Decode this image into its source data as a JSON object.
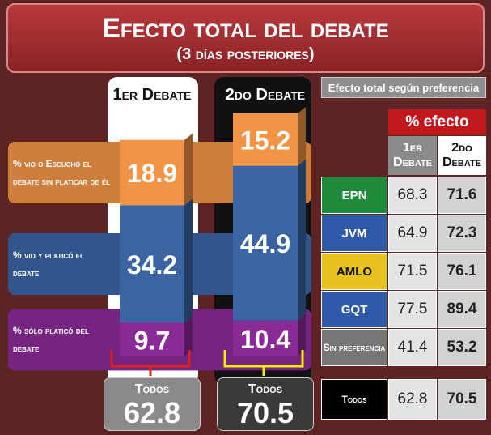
{
  "title": "Efecto total del debate",
  "subtitle": "(3 días posteriores)",
  "chart_data": {
    "type": "bar",
    "stacked": true,
    "categories": [
      "1er Debate",
      "2do Debate"
    ],
    "series": [
      {
        "name": "% sólo platicó del debate",
        "color": "#8a2a96",
        "values": [
          9.7,
          10.4
        ]
      },
      {
        "name": "% vio y platicó el debate",
        "color": "#3b64a3",
        "values": [
          34.2,
          44.9
        ]
      },
      {
        "name": "% vio o Escuchó el debate sin platicar de él",
        "color": "#f29446",
        "values": [
          18.9,
          15.2
        ]
      }
    ],
    "totals_label": "Todos",
    "totals": [
      62.8,
      70.5
    ]
  },
  "table": {
    "title": "Efecto total según preferencia",
    "header": "% efecto",
    "columns": [
      "1er Debate",
      "2do Debate"
    ],
    "rows": [
      [
        "EPN",
        68.3,
        71.6
      ],
      [
        "JVM",
        64.9,
        72.3
      ],
      [
        "AMLO",
        71.5,
        76.1
      ],
      [
        "GQT",
        77.5,
        89.4
      ],
      [
        "Sin preferencia",
        41.4,
        53.2
      ],
      [
        "Todos",
        62.8,
        70.5
      ]
    ]
  }
}
